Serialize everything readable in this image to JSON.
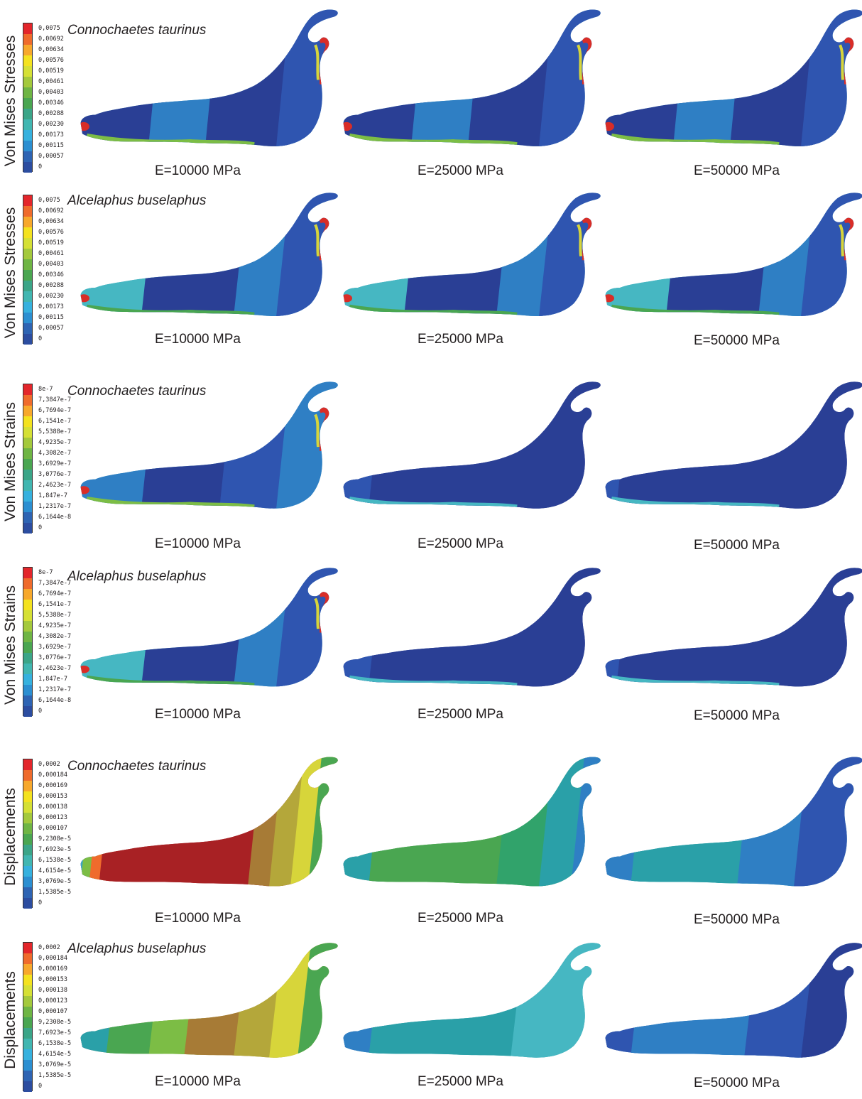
{
  "legends": {
    "stress": {
      "ticks": [
        "0,0075",
        "0,00692",
        "0,00634",
        "0,00576",
        "0,00519",
        "0,00461",
        "0,00403",
        "0,00346",
        "0,00288",
        "0,00230",
        "0,00173",
        "0,00115",
        "0,00057",
        "0"
      ],
      "colors": [
        "#e3262b",
        "#ef6b2c",
        "#f7a82c",
        "#f4e21f",
        "#d5e035",
        "#a4c93c",
        "#6fb544",
        "#4aa651",
        "#3ba588",
        "#41b6b1",
        "#36b1de",
        "#2c8fd1",
        "#2e64b3",
        "#2c4da0"
      ]
    },
    "strain": {
      "ticks": [
        "8e-7",
        "7,3847e-7",
        "6,7694e-7",
        "6,1541e-7",
        "5,5388e-7",
        "4,9235e-7",
        "4,3082e-7",
        "3,6929e-7",
        "3,0776e-7",
        "2,4623e-7",
        "1,847e-7",
        "1,2317e-7",
        "6,1644e-8",
        "0"
      ],
      "colors": [
        "#e3262b",
        "#ef6b2c",
        "#f7a82c",
        "#f4e21f",
        "#d5e035",
        "#a4c93c",
        "#6fb544",
        "#4aa651",
        "#3ba588",
        "#41b6b1",
        "#36b1de",
        "#2c8fd1",
        "#2e64b3",
        "#2c4da0"
      ]
    },
    "displacement": {
      "ticks": [
        "0,0002",
        "0,000184",
        "0,000169",
        "0,000153",
        "0,000138",
        "0,000123",
        "0,000107",
        "9,2308e-5",
        "7,6923e-5",
        "6,1538e-5",
        "4,6154e-5",
        "3,0769e-5",
        "1,5385e-5",
        "0"
      ],
      "colors": [
        "#e3262b",
        "#ef6b2c",
        "#f7a82c",
        "#f4e21f",
        "#d5e035",
        "#a4c93c",
        "#6fb544",
        "#4aa651",
        "#3ba588",
        "#41b6b1",
        "#36b1de",
        "#2c8fd1",
        "#2e64b3",
        "#2c4da0"
      ]
    }
  },
  "rows": [
    {
      "axis_label": "Von Mises Stresses",
      "species": "Connochaetes taurinus",
      "legend": "stress",
      "columns": [
        {
          "label": "E=10000 MPa"
        },
        {
          "label": "E=25000 MPa"
        },
        {
          "label": "E=50000 MPa"
        }
      ]
    },
    {
      "axis_label": "Von Mises Stresses",
      "species": "Alcelaphus buselaphus",
      "legend": "stress",
      "columns": [
        {
          "label": "E=10000 MPa"
        },
        {
          "label": "E=25000 MPa"
        },
        {
          "label": "E=50000 MPa"
        }
      ]
    },
    {
      "axis_label": "Von Mises Strains",
      "species": "Connochaetes taurinus",
      "legend": "strain",
      "columns": [
        {
          "label": "E=10000 MPa"
        },
        {
          "label": "E=25000 MPa"
        },
        {
          "label": "E=50000 MPa"
        }
      ]
    },
    {
      "axis_label": "Von Mises Strains",
      "species": "Alcelaphus buselaphus",
      "legend": "strain",
      "columns": [
        {
          "label": "E=10000 MPa"
        },
        {
          "label": "E=25000 MPa"
        },
        {
          "label": "E=50000 MPa"
        }
      ]
    },
    {
      "axis_label": "Displacements",
      "species": "Connochaetes taurinus",
      "legend": "displacement",
      "columns": [
        {
          "label": "E=10000 MPa"
        },
        {
          "label": "E=25000 MPa"
        },
        {
          "label": "E=50000 MPa"
        }
      ]
    },
    {
      "axis_label": "Displacements",
      "species": "Alcelaphus buselaphus",
      "legend": "displacement",
      "columns": [
        {
          "label": "E=10000 MPa"
        },
        {
          "label": "E=25000 MPa"
        },
        {
          "label": "E=50000 MPa"
        }
      ]
    }
  ]
}
